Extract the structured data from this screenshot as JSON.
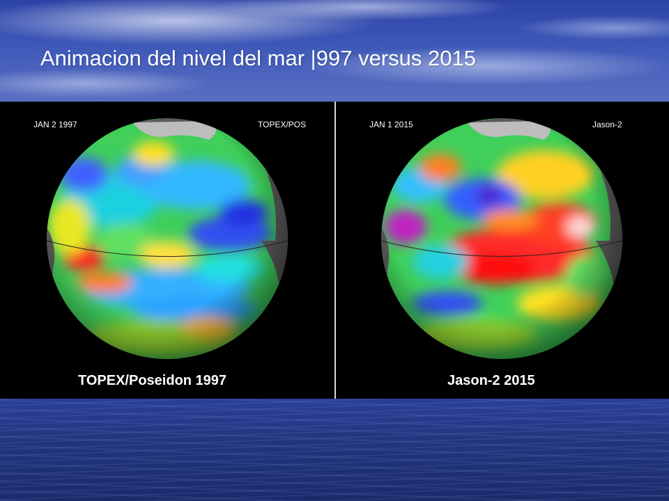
{
  "slide": {
    "title": "Animacion del nivel del mar |997 versus 2015"
  },
  "panels": [
    {
      "date_label": "JAN  2  1997",
      "mission_label": "TOPEX/POS",
      "caption": "TOPEX/Poseidon 1997"
    },
    {
      "date_label": "JAN  1  2015",
      "mission_label": "Jason-2",
      "caption": "Jason-2 2015"
    }
  ],
  "colors": {
    "sky": "#3d58b8",
    "water": "#22357f",
    "panel_background": "#000000",
    "land": "#555555",
    "sea_high": "#ff1a1a",
    "sea_mid": "#22dd22",
    "sea_low": "#2222dd"
  }
}
